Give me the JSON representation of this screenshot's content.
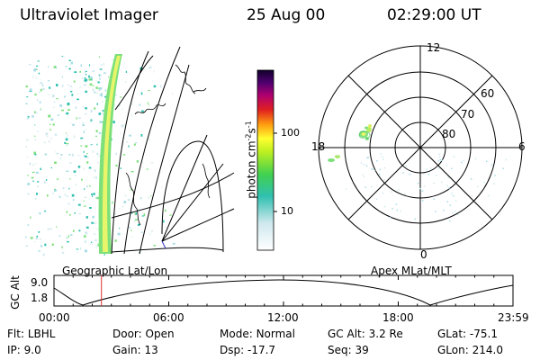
{
  "header": {
    "instrument": "Ultraviolet Imager",
    "date": "25 Aug 00",
    "time": "02:29:00 UT"
  },
  "colorbar": {
    "unit_text": "photon cm",
    "unit_sup1": "-2",
    "unit_mid": "s",
    "unit_sup2": "-1",
    "tick_100": "100",
    "tick_10": "10"
  },
  "geo_panel": {
    "caption": "Geographic Lat/Lon"
  },
  "polar_panel": {
    "caption": "Apex MLat/MLT",
    "mlt_labels": {
      "top": "12",
      "left": "18",
      "right": "6",
      "bottom": "0"
    },
    "mlat_labels": [
      "60",
      "70",
      "80"
    ]
  },
  "orbit_plot": {
    "ylabel": "GC Alt",
    "y_ticks": [
      "9.0",
      "1.8"
    ],
    "x_ticks": [
      "00:00",
      "06:00",
      "12:00",
      "18:00",
      "23:59"
    ],
    "current_time_marker_hours": 2.48
  },
  "info": {
    "row1": [
      {
        "key": "Flt:",
        "value": "LBHL"
      },
      {
        "key": "Door:",
        "value": "Open"
      },
      {
        "key": "Mode:",
        "value": "Normal"
      },
      {
        "key": "GC Alt:",
        "value": "3.2 Re"
      },
      {
        "key": "GLat:",
        "value": "-75.1"
      }
    ],
    "row2": [
      {
        "key": "IP:",
        "value": "9.0"
      },
      {
        "key": "Gain:",
        "value": "13"
      },
      {
        "key": "Dsp:",
        "value": "-17.7"
      },
      {
        "key": "Seq:",
        "value": "39"
      },
      {
        "key": "GLon:",
        "value": "214.0"
      }
    ]
  }
}
